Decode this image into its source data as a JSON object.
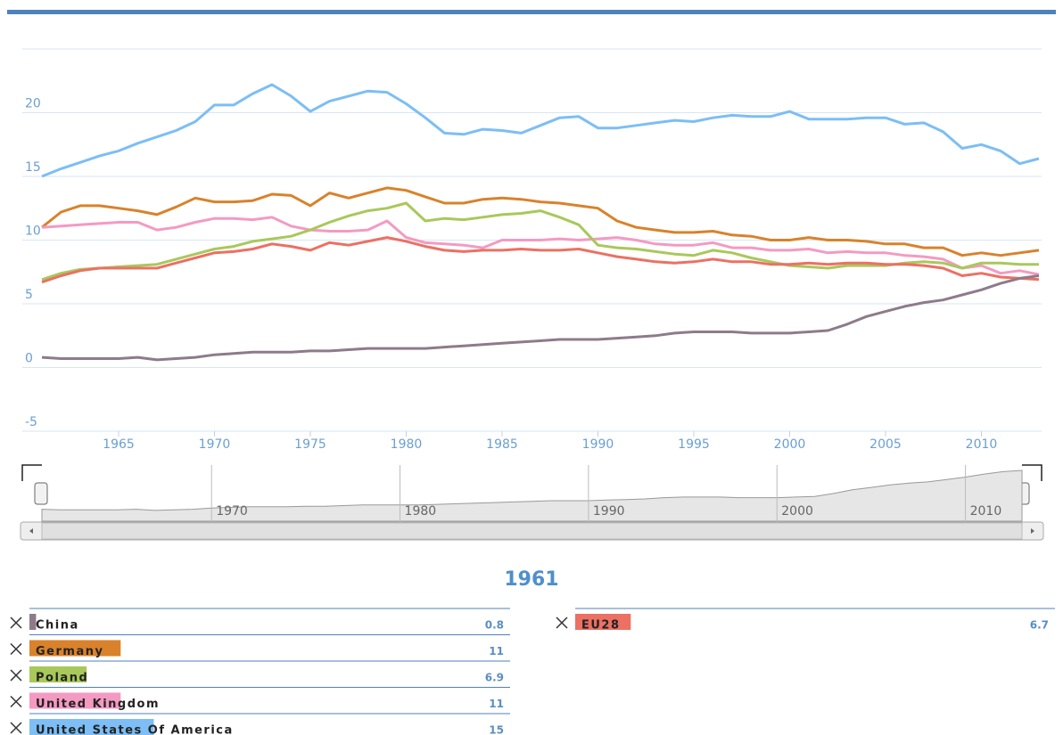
{
  "chart_data": {
    "type": "line",
    "x": [
      1961,
      1962,
      1963,
      1964,
      1965,
      1966,
      1967,
      1968,
      1969,
      1970,
      1971,
      1972,
      1973,
      1974,
      1975,
      1976,
      1977,
      1978,
      1979,
      1980,
      1981,
      1982,
      1983,
      1984,
      1985,
      1986,
      1987,
      1988,
      1989,
      1990,
      1991,
      1992,
      1993,
      1994,
      1995,
      1996,
      1997,
      1998,
      1999,
      2000,
      2001,
      2002,
      2003,
      2004,
      2005,
      2006,
      2007,
      2008,
      2009,
      2010,
      2011,
      2012,
      2013
    ],
    "xlim": [
      1961,
      2013
    ],
    "xticks": [
      1965,
      1970,
      1975,
      1980,
      1985,
      1990,
      1995,
      2000,
      2005,
      2010
    ],
    "ylim": [
      -5,
      25
    ],
    "yticks": [
      -5,
      0,
      5,
      10,
      15,
      20
    ],
    "grid": true,
    "navigator": {
      "xticks": [
        1970,
        1980,
        1990,
        2000,
        2010
      ]
    },
    "series": [
      {
        "name": "China",
        "color": "#8d7b8a",
        "values": [
          0.8,
          0.7,
          0.7,
          0.7,
          0.7,
          0.8,
          0.6,
          0.7,
          0.8,
          1.0,
          1.1,
          1.2,
          1.2,
          1.2,
          1.3,
          1.3,
          1.4,
          1.5,
          1.5,
          1.5,
          1.5,
          1.6,
          1.7,
          1.8,
          1.9,
          2.0,
          2.1,
          2.2,
          2.2,
          2.2,
          2.3,
          2.4,
          2.5,
          2.7,
          2.8,
          2.8,
          2.8,
          2.7,
          2.7,
          2.7,
          2.8,
          2.9,
          3.4,
          4.0,
          4.4,
          4.8,
          5.1,
          5.3,
          5.7,
          6.1,
          6.6,
          7.0,
          7.2
        ]
      },
      {
        "name": "Germany",
        "color": "#d9822b",
        "values": [
          11,
          12.2,
          12.7,
          12.7,
          12.5,
          12.3,
          12.0,
          12.6,
          13.3,
          13.0,
          13.0,
          13.1,
          13.6,
          13.5,
          12.7,
          13.7,
          13.3,
          13.7,
          14.1,
          13.9,
          13.4,
          12.9,
          12.9,
          13.2,
          13.3,
          13.2,
          13.0,
          12.9,
          12.7,
          12.5,
          11.5,
          11.0,
          10.8,
          10.6,
          10.6,
          10.7,
          10.4,
          10.3,
          10.0,
          10.0,
          10.2,
          10.0,
          10.0,
          9.9,
          9.7,
          9.7,
          9.4,
          9.4,
          8.8,
          9.0,
          8.8,
          9.0,
          9.2
        ]
      },
      {
        "name": "Poland",
        "color": "#a9c85a",
        "values": [
          6.9,
          7.4,
          7.7,
          7.8,
          7.9,
          8.0,
          8.1,
          8.5,
          8.9,
          9.3,
          9.5,
          9.9,
          10.1,
          10.3,
          10.8,
          11.4,
          11.9,
          12.3,
          12.5,
          12.9,
          11.5,
          11.7,
          11.6,
          11.8,
          12.0,
          12.1,
          12.3,
          11.8,
          11.2,
          9.6,
          9.4,
          9.3,
          9.1,
          8.9,
          8.8,
          9.2,
          9.0,
          8.6,
          8.3,
          8.0,
          7.9,
          7.8,
          8.0,
          8.0,
          8.0,
          8.2,
          8.3,
          8.2,
          7.8,
          8.2,
          8.2,
          8.1,
          8.1
        ]
      },
      {
        "name": "United Kingdom",
        "color": "#f49ac2",
        "values": [
          11,
          11.1,
          11.2,
          11.3,
          11.4,
          11.4,
          10.8,
          11.0,
          11.4,
          11.7,
          11.7,
          11.6,
          11.8,
          11.1,
          10.8,
          10.7,
          10.7,
          10.8,
          11.5,
          10.2,
          9.8,
          9.7,
          9.6,
          9.4,
          10.0,
          10.0,
          10.0,
          10.1,
          10.0,
          10.1,
          10.2,
          10.0,
          9.7,
          9.6,
          9.6,
          9.8,
          9.4,
          9.4,
          9.2,
          9.2,
          9.3,
          9.0,
          9.1,
          9.0,
          9.0,
          8.8,
          8.7,
          8.5,
          7.8,
          8.0,
          7.4,
          7.6,
          7.3
        ]
      },
      {
        "name": "United States Of America",
        "color": "#7cbef5",
        "values": [
          15,
          15.6,
          16.1,
          16.6,
          17.0,
          17.6,
          18.1,
          18.6,
          19.3,
          20.6,
          20.6,
          21.5,
          22.2,
          21.3,
          20.1,
          20.9,
          21.3,
          21.7,
          21.6,
          20.7,
          19.6,
          18.4,
          18.3,
          18.7,
          18.6,
          18.4,
          19.0,
          19.6,
          19.7,
          18.8,
          18.8,
          19.0,
          19.2,
          19.4,
          19.3,
          19.6,
          19.8,
          19.7,
          19.7,
          20.1,
          19.5,
          19.5,
          19.5,
          19.6,
          19.6,
          19.1,
          19.2,
          18.5,
          17.2,
          17.5,
          17.0,
          16.0,
          16.4
        ]
      },
      {
        "name": "EU28",
        "color": "#ec7063",
        "values": [
          6.7,
          7.2,
          7.6,
          7.8,
          7.8,
          7.8,
          7.8,
          8.2,
          8.6,
          9.0,
          9.1,
          9.3,
          9.7,
          9.5,
          9.2,
          9.8,
          9.6,
          9.9,
          10.2,
          9.9,
          9.5,
          9.2,
          9.1,
          9.2,
          9.2,
          9.3,
          9.2,
          9.2,
          9.3,
          9.0,
          8.7,
          8.5,
          8.3,
          8.2,
          8.3,
          8.5,
          8.3,
          8.3,
          8.1,
          8.1,
          8.2,
          8.1,
          8.2,
          8.2,
          8.1,
          8.1,
          8.0,
          7.8,
          7.2,
          7.4,
          7.1,
          7.0,
          6.9
        ]
      }
    ]
  }
}
